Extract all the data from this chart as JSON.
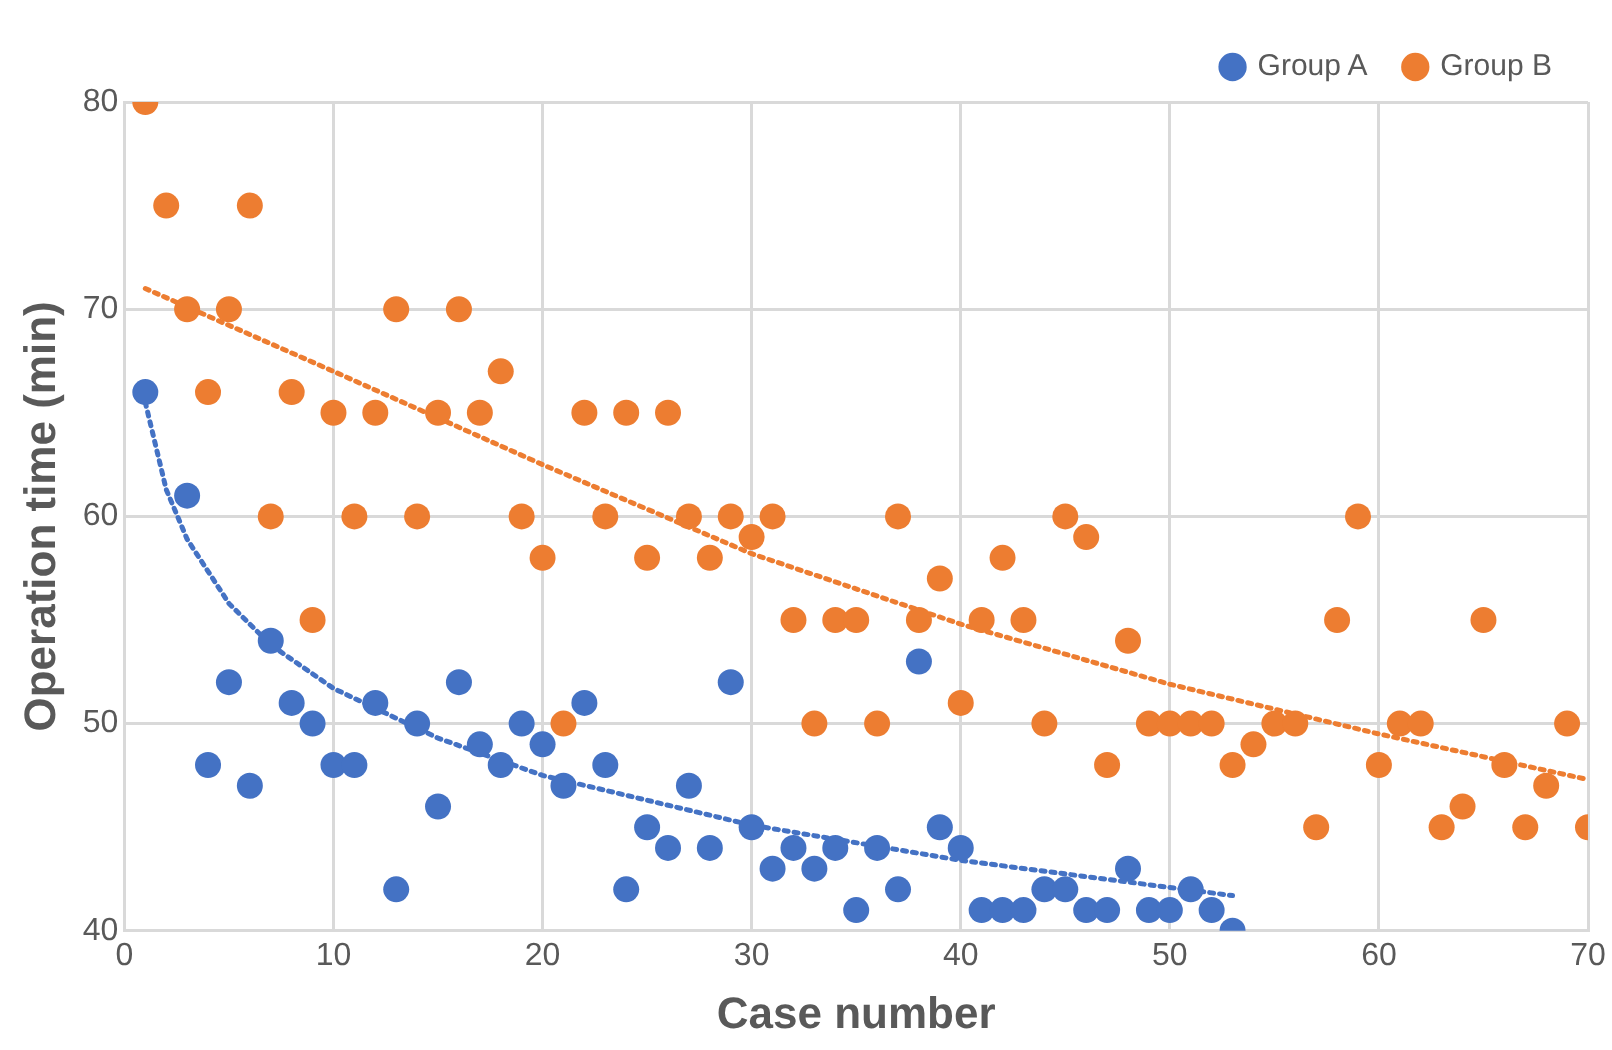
{
  "chart_data": {
    "type": "scatter",
    "xlabel": "Case number",
    "ylabel": "Operation time (min)",
    "xlim": [
      0,
      70
    ],
    "xticks": [
      0,
      10,
      20,
      30,
      40,
      50,
      60,
      70
    ],
    "ylim": [
      40,
      80
    ],
    "yticks": [
      40,
      50,
      60,
      70,
      80
    ],
    "grid": true,
    "legend": "top right",
    "marker": "circle",
    "series": [
      {
        "name": "Group A",
        "color": "#4472c4",
        "x": [
          1,
          3,
          4,
          5,
          6,
          7,
          8,
          9,
          10,
          11,
          12,
          13,
          14,
          15,
          16,
          17,
          18,
          19,
          20,
          21,
          22,
          23,
          24,
          25,
          26,
          27,
          28,
          29,
          30,
          31,
          32,
          33,
          34,
          35,
          36,
          37,
          38,
          39,
          40,
          41,
          42,
          43,
          44,
          45,
          46,
          47,
          48,
          49,
          50,
          51,
          52,
          53
        ],
        "values": [
          66,
          61,
          48,
          52,
          47,
          54,
          51,
          50,
          48,
          48,
          51,
          42,
          50,
          46,
          52,
          49,
          48,
          50,
          49,
          47,
          51,
          48,
          42,
          45,
          44,
          47,
          44,
          52,
          45,
          43,
          44,
          43,
          44,
          41,
          44,
          42,
          53,
          45,
          44,
          41,
          41,
          41,
          42,
          42,
          41,
          41,
          43,
          41,
          41,
          42,
          41,
          40
        ]
      },
      {
        "name": "Group B",
        "color": "#ed7d31",
        "x": [
          1,
          2,
          3,
          4,
          5,
          6,
          7,
          8,
          9,
          10,
          11,
          12,
          13,
          14,
          15,
          16,
          17,
          18,
          19,
          20,
          21,
          22,
          23,
          24,
          25,
          26,
          27,
          28,
          29,
          30,
          31,
          32,
          33,
          34,
          35,
          36,
          37,
          38,
          39,
          40,
          41,
          42,
          43,
          44,
          45,
          46,
          47,
          48,
          49,
          50,
          51,
          52,
          53,
          54,
          55,
          56,
          57,
          58,
          59,
          60,
          61,
          62,
          63,
          64,
          65,
          66,
          67,
          68,
          69,
          70
        ],
        "values": [
          80,
          75,
          70,
          66,
          70,
          75,
          60,
          66,
          55,
          65,
          60,
          65,
          70,
          60,
          65,
          70,
          65,
          67,
          60,
          58,
          50,
          65,
          60,
          65,
          58,
          65,
          60,
          58,
          60,
          59,
          60,
          55,
          50,
          55,
          55,
          50,
          60,
          55,
          57,
          51,
          55,
          58,
          55,
          50,
          60,
          59,
          48,
          54,
          50,
          50,
          50,
          50,
          48,
          49,
          50,
          50,
          45,
          55,
          60,
          48,
          50,
          50,
          45,
          46,
          55,
          48,
          45,
          47,
          50,
          45
        ]
      },
      {
        "type": "line",
        "color": "#4472c4",
        "marker": "none",
        "line_style": "dotted",
        "x": [
          1,
          2,
          3,
          5,
          7,
          10,
          15,
          20,
          30,
          40,
          53
        ],
        "values": [
          65.5,
          61.3,
          58.9,
          55.8,
          53.8,
          51.7,
          49.3,
          47.5,
          45.1,
          43.4,
          41.7
        ]
      },
      {
        "type": "line",
        "color": "#ed7d31",
        "marker": "none",
        "line_style": "dotted",
        "x": [
          1,
          10,
          20,
          30,
          40,
          50,
          60,
          70
        ],
        "values": [
          71,
          67,
          62.5,
          58.2,
          54.8,
          51.9,
          49.5,
          47.3
        ]
      }
    ]
  }
}
